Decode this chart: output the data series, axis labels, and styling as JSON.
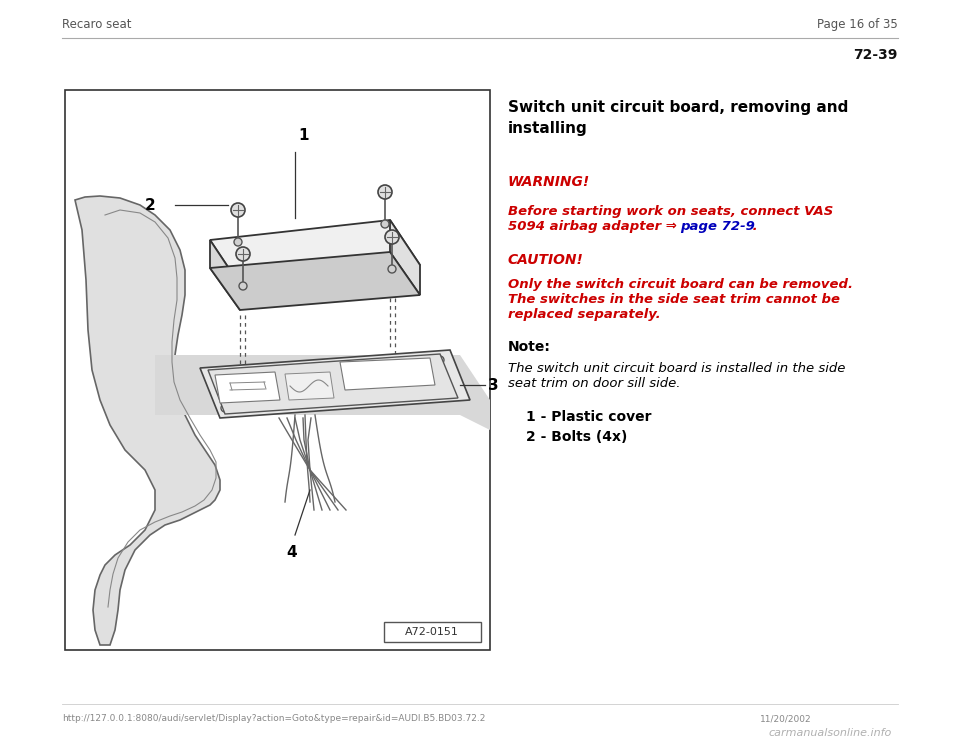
{
  "bg_color": "#ffffff",
  "header_left": "Recaro seat",
  "header_right": "Page 16 of 35",
  "page_number": "72-39",
  "title": "Switch unit circuit board, removing and\ninstalling",
  "warning_label": "WARNING!",
  "caution_label": "CAUTION!",
  "caution_text_line1": "Only the switch circuit board can be removed.",
  "caution_text_line2": "The switches in the side seat trim cannot be",
  "caution_text_line3": "replaced separately.",
  "note_label": "Note:",
  "note_text_line1": "The switch unit circuit board is installed in the side",
  "note_text_line2": "seat trim on door sill side.",
  "item1": "1 - Plastic cover",
  "item2": "2 - Bolts (4x)",
  "footer_url": "http://127.0.0.1:8080/audi/servlet/Display?action=Goto&type=repair&id=AUDI.B5.BD03.72.2",
  "footer_date": "11/20/2002",
  "footer_watermark": "carmanualsonline.info",
  "diagram_label": "A72-0151",
  "label1": "1",
  "label2": "2",
  "label3": "3",
  "label4": "4",
  "warn_line1": "Before starting work on seats, connect VAS",
  "warn_line2_red": "5094 airbag adapter ⇒ ",
  "warn_line2_blue": "page 72-9",
  "warn_line2_end": " ."
}
